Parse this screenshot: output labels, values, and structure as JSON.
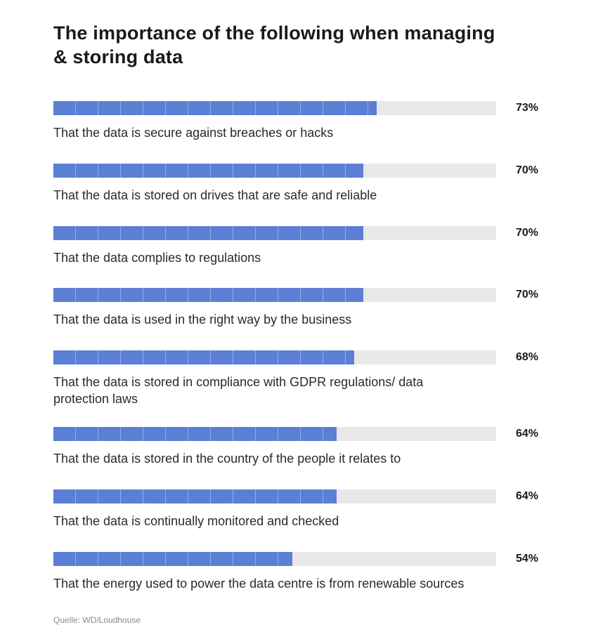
{
  "chart_data": {
    "type": "bar",
    "orientation": "horizontal",
    "title": "The importance of the following when managing & storing data",
    "categories": [
      "That the data is secure against breaches or hacks",
      "That the data is stored on drives that are safe and reliable",
      "That the data complies to regulations",
      "That the data is used in the right way by the business",
      "That the data is stored in compliance with GDPR regulations/ data protection laws",
      "That the data is stored in the country of the people it relates to",
      "That the data is continually monitored and checked",
      "That the energy used to power the data centre is from renewable sources"
    ],
    "values": [
      73,
      70,
      70,
      70,
      68,
      64,
      64,
      54
    ],
    "value_labels": [
      "73%",
      "70%",
      "70%",
      "70%",
      "68%",
      "64%",
      "64%",
      "54%"
    ],
    "xlim": [
      0,
      100
    ],
    "grid": false,
    "source": "Quelle: WD/Loudhouse"
  },
  "colors": {
    "bar": "#5a7fd4",
    "track": "#e8e8e8",
    "text": "#222222",
    "source": "#8a8a8a"
  }
}
